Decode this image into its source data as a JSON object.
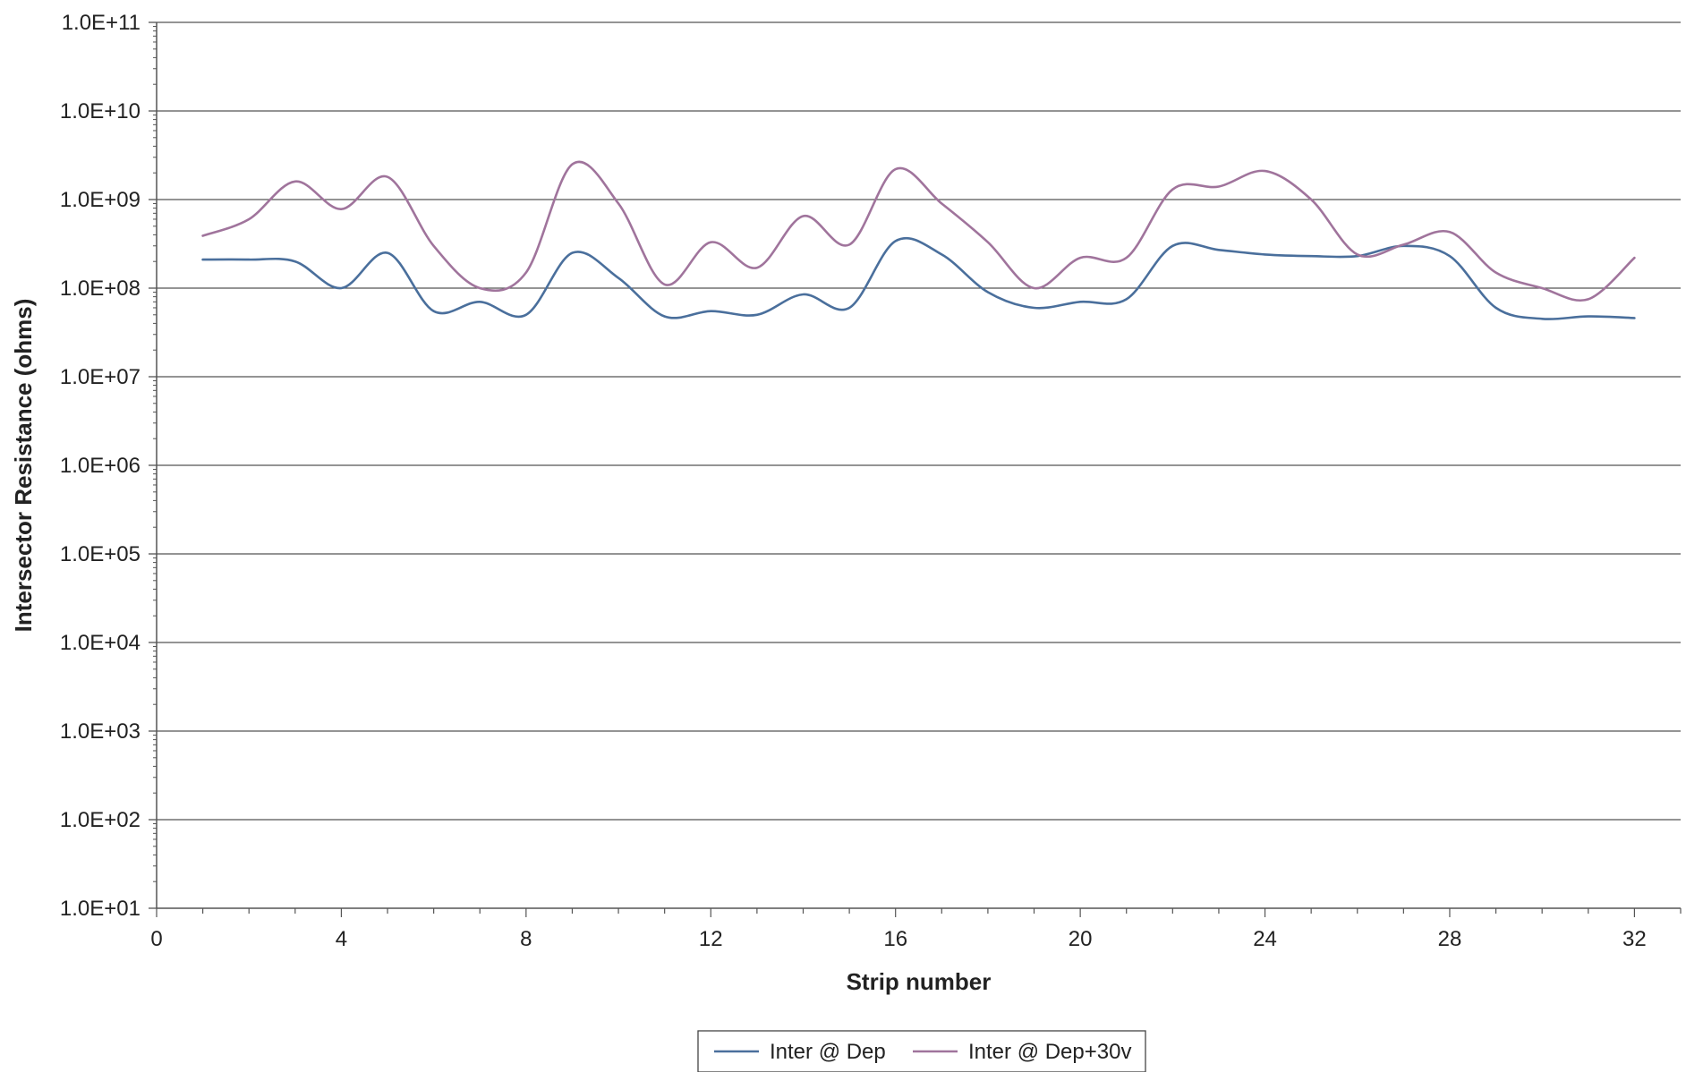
{
  "chart_data": {
    "type": "line",
    "title": "",
    "xlabel": "Strip number",
    "ylabel": "Intersector Resistance (ohms)",
    "xlim": [
      0,
      33
    ],
    "ylim": [
      10,
      100000000000
    ],
    "y_scale": "log",
    "x_ticks": [
      0,
      4,
      8,
      12,
      16,
      20,
      24,
      28,
      32
    ],
    "y_ticks": [
      10,
      100,
      1000,
      10000,
      100000,
      1000000,
      10000000,
      100000000,
      1000000000,
      10000000000,
      100000000000
    ],
    "x_tick_labels": [
      "0",
      "4",
      "8",
      "12",
      "16",
      "20",
      "24",
      "28",
      "32"
    ],
    "y_tick_labels": [
      "1.0E+01",
      "1.0E+02",
      "1.0E+03",
      "1.0E+04",
      "1.0E+05",
      "1.0E+06",
      "1.0E+07",
      "1.0E+08",
      "1.0E+09",
      "1.0E+10",
      "1.0E+11"
    ],
    "grid": "horizontal major gridlines",
    "legend_position": "bottom",
    "x": [
      1,
      2,
      3,
      4,
      5,
      6,
      7,
      8,
      9,
      10,
      11,
      12,
      13,
      14,
      15,
      16,
      17,
      18,
      19,
      20,
      21,
      22,
      23,
      24,
      25,
      26,
      27,
      28,
      29,
      30,
      31,
      32
    ],
    "series": [
      {
        "name": "Inter @ Dep",
        "color": "#4a6f9c",
        "values": [
          210000000.0,
          210000000.0,
          200000000.0,
          100000000.0,
          250000000.0,
          55000000.0,
          70000000.0,
          50000000.0,
          250000000.0,
          130000000.0,
          48000000.0,
          55000000.0,
          50000000.0,
          85000000.0,
          60000000.0,
          340000000.0,
          240000000.0,
          90000000.0,
          60000000.0,
          70000000.0,
          75000000.0,
          300000000.0,
          270000000.0,
          240000000.0,
          230000000.0,
          230000000.0,
          300000000.0,
          230000000.0,
          60000000.0,
          45000000.0,
          48000000.0,
          46000000.0
        ]
      },
      {
        "name": "Inter @ Dep+30v",
        "color": "#a0749c",
        "values": [
          390000000.0,
          600000000.0,
          1600000000.0,
          780000000.0,
          1800000000.0,
          300000000.0,
          100000000.0,
          150000000.0,
          2500000000.0,
          900000000.0,
          110000000.0,
          330000000.0,
          170000000.0,
          650000000.0,
          310000000.0,
          2200000000.0,
          900000000.0,
          330000000.0,
          100000000.0,
          220000000.0,
          220000000.0,
          1300000000.0,
          1400000000.0,
          2100000000.0,
          1000000000.0,
          240000000.0,
          310000000.0,
          430000000.0,
          150000000.0,
          100000000.0,
          75000000.0,
          220000000.0
        ]
      }
    ]
  }
}
